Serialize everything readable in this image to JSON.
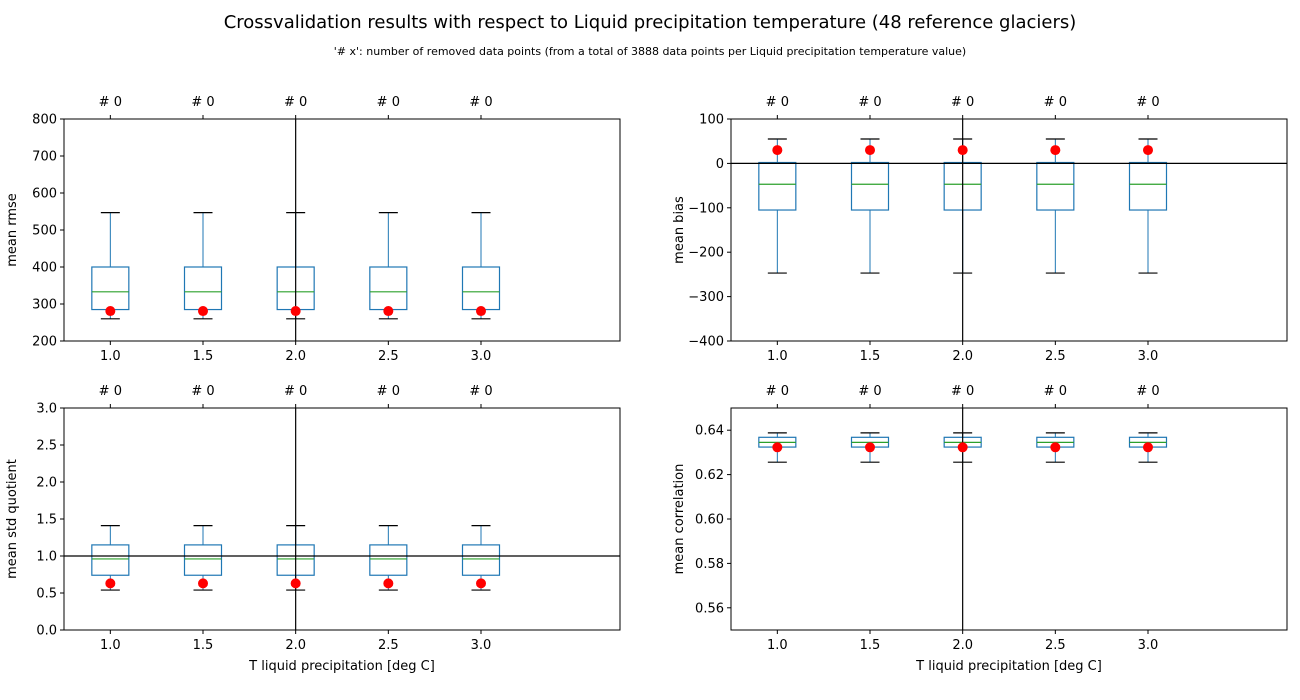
{
  "figure": {
    "title": "Crossvalidation results with respect to Liquid precipitation temperature  (48 reference glaciers)",
    "subtitle": "'# x': number of removed data points (from a total of 3888 data points per Liquid precipitation temperature value)"
  },
  "colors": {
    "box": "#1f77b4",
    "median": "#2ca02c",
    "whisker_cap": "#000000",
    "marker": "#ff0000",
    "refline": "#000000"
  },
  "chart_data": [
    {
      "id": "rmse",
      "type": "box",
      "categories": [
        "1.0",
        "1.5",
        "2.0",
        "2.5",
        "3.0"
      ],
      "top_labels": [
        "# 0",
        "# 0",
        "# 0",
        "# 0",
        "# 0"
      ],
      "ylabel": "mean rmse",
      "xlabel": "",
      "ylim": [
        200,
        800
      ],
      "yticks": [
        200,
        300,
        400,
        500,
        600,
        700,
        800
      ],
      "ytick_labels": [
        "200",
        "300",
        "400",
        "500",
        "600",
        "700",
        "800"
      ],
      "boxes": [
        {
          "whislo": 260,
          "q1": 285,
          "med": 333,
          "q3": 400,
          "whishi": 547
        },
        {
          "whislo": 260,
          "q1": 285,
          "med": 333,
          "q3": 400,
          "whishi": 547
        },
        {
          "whislo": 260,
          "q1": 285,
          "med": 333,
          "q3": 400,
          "whishi": 547
        },
        {
          "whislo": 260,
          "q1": 285,
          "med": 333,
          "q3": 400,
          "whishi": 547
        },
        {
          "whislo": 260,
          "q1": 285,
          "med": 333,
          "q3": 400,
          "whishi": 547
        }
      ],
      "markers": [
        281,
        281,
        281,
        281,
        281
      ],
      "vline_x": "2.0",
      "hline_y": null
    },
    {
      "id": "bias",
      "type": "box",
      "categories": [
        "1.0",
        "1.5",
        "2.0",
        "2.5",
        "3.0"
      ],
      "top_labels": [
        "# 0",
        "# 0",
        "# 0",
        "# 0",
        "# 0"
      ],
      "ylabel": "mean bias",
      "xlabel": "",
      "ylim": [
        -400,
        100
      ],
      "yticks": [
        -400,
        -300,
        -200,
        -100,
        0,
        100
      ],
      "ytick_labels": [
        "−400",
        "−300",
        "−200",
        "−100",
        "0",
        "100"
      ],
      "boxes": [
        {
          "whislo": -247,
          "q1": -105,
          "med": -47,
          "q3": 2,
          "whishi": 55
        },
        {
          "whislo": -247,
          "q1": -105,
          "med": -47,
          "q3": 2,
          "whishi": 55
        },
        {
          "whislo": -247,
          "q1": -105,
          "med": -47,
          "q3": 2,
          "whishi": 55
        },
        {
          "whislo": -247,
          "q1": -105,
          "med": -47,
          "q3": 2,
          "whishi": 55
        },
        {
          "whislo": -247,
          "q1": -105,
          "med": -47,
          "q3": 2,
          "whishi": 55
        }
      ],
      "markers": [
        30,
        30,
        30,
        30,
        30
      ],
      "vline_x": "2.0",
      "hline_y": 0
    },
    {
      "id": "std",
      "type": "box",
      "categories": [
        "1.0",
        "1.5",
        "2.0",
        "2.5",
        "3.0"
      ],
      "top_labels": [
        "# 0",
        "# 0",
        "# 0",
        "# 0",
        "# 0"
      ],
      "ylabel": "mean std quotient",
      "xlabel": "T liquid precipitation [deg C]",
      "ylim": [
        0,
        3
      ],
      "yticks": [
        0,
        0.5,
        1,
        1.5,
        2,
        2.5,
        3
      ],
      "ytick_labels": [
        "0.0",
        "0.5",
        "1.0",
        "1.5",
        "2.0",
        "2.5",
        "3.0"
      ],
      "boxes": [
        {
          "whislo": 0.54,
          "q1": 0.74,
          "med": 0.96,
          "q3": 1.15,
          "whishi": 1.41
        },
        {
          "whislo": 0.54,
          "q1": 0.74,
          "med": 0.96,
          "q3": 1.15,
          "whishi": 1.41
        },
        {
          "whislo": 0.54,
          "q1": 0.74,
          "med": 0.96,
          "q3": 1.15,
          "whishi": 1.41
        },
        {
          "whislo": 0.54,
          "q1": 0.74,
          "med": 0.96,
          "q3": 1.15,
          "whishi": 1.41
        },
        {
          "whislo": 0.54,
          "q1": 0.74,
          "med": 0.96,
          "q3": 1.15,
          "whishi": 1.41
        }
      ],
      "markers": [
        0.63,
        0.63,
        0.63,
        0.63,
        0.63
      ],
      "vline_x": "2.0",
      "hline_y": 1.0
    },
    {
      "id": "corr",
      "type": "box",
      "categories": [
        "1.0",
        "1.5",
        "2.0",
        "2.5",
        "3.0"
      ],
      "top_labels": [
        "# 0",
        "# 0",
        "# 0",
        "# 0",
        "# 0"
      ],
      "ylabel": "mean correlation",
      "xlabel": "T liquid precipitation [deg C]",
      "ylim": [
        0.55,
        0.65
      ],
      "yticks": [
        0.56,
        0.58,
        0.6,
        0.62,
        0.64
      ],
      "ytick_labels": [
        "0.56",
        "0.58",
        "0.60",
        "0.62",
        "0.64"
      ],
      "boxes": [
        {
          "whislo": 0.6256,
          "q1": 0.6324,
          "med": 0.6345,
          "q3": 0.6368,
          "whishi": 0.6388
        },
        {
          "whislo": 0.6256,
          "q1": 0.6324,
          "med": 0.6345,
          "q3": 0.6368,
          "whishi": 0.6388
        },
        {
          "whislo": 0.6256,
          "q1": 0.6324,
          "med": 0.6345,
          "q3": 0.6368,
          "whishi": 0.6388
        },
        {
          "whislo": 0.6256,
          "q1": 0.6324,
          "med": 0.6345,
          "q3": 0.6368,
          "whishi": 0.6388
        },
        {
          "whislo": 0.6256,
          "q1": 0.6324,
          "med": 0.6345,
          "q3": 0.6368,
          "whishi": 0.6388
        }
      ],
      "markers": [
        0.6323,
        0.6323,
        0.6323,
        0.6323,
        0.6323
      ],
      "vline_x": "2.0",
      "hline_y": null
    }
  ]
}
